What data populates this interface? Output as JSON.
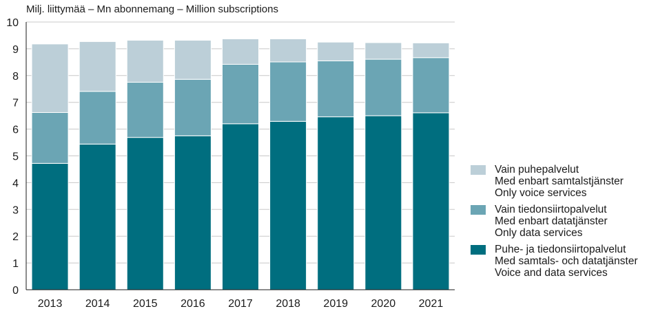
{
  "chart_data": {
    "type": "bar",
    "stacked": true,
    "ylabel": "Milj. liittymää – Mn abonnemang – Million subscriptions",
    "ylim": [
      0,
      10
    ],
    "yticks": [
      0,
      1,
      2,
      3,
      4,
      5,
      6,
      7,
      8,
      9,
      10
    ],
    "grid": true,
    "legend_position": "right",
    "categories": [
      "2013",
      "2014",
      "2015",
      "2016",
      "2017",
      "2018",
      "2019",
      "2020",
      "2021"
    ],
    "series": [
      {
        "name": "Puhe- ja tiedonsiirtopalvelut / Med samtals- och datatjänster / Voice and data services",
        "color": "#006e7f",
        "values": [
          4.72,
          5.44,
          5.69,
          5.75,
          6.2,
          6.29,
          6.46,
          6.5,
          6.61
        ]
      },
      {
        "name": "Vain tiedonsiirtopalvelut / Med enbart datatjänster / Only data services",
        "color": "#6ba5b4",
        "values": [
          1.9,
          1.97,
          2.06,
          2.11,
          2.22,
          2.22,
          2.09,
          2.11,
          2.06
        ]
      },
      {
        "name": "Vain puhepalvelut / Med enbart samtalstjänster / Only voice services",
        "color": "#bccfd8",
        "values": [
          2.56,
          1.86,
          1.57,
          1.46,
          0.95,
          0.86,
          0.7,
          0.62,
          0.55
        ]
      }
    ]
  },
  "legend": [
    {
      "color": "#bccfd8",
      "lines": [
        "Vain puhepalvelut",
        "Med enbart samtalstjänster",
        "Only voice services"
      ]
    },
    {
      "color": "#6ba5b4",
      "lines": [
        "Vain tiedonsiirtopalvelut",
        "Med enbart datatjänster",
        "Only data services"
      ]
    },
    {
      "color": "#006e7f",
      "lines": [
        "Puhe- ja tiedonsiirtopalvelut",
        "Med samtals- och datatjänster",
        "Voice and data services"
      ]
    }
  ],
  "colors": {
    "grid": "#c8c8c8",
    "axis": "#1a1a1a"
  }
}
